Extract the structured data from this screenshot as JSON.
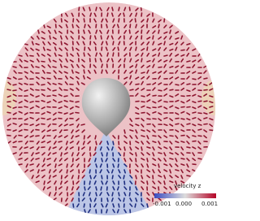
{
  "colorbar": {
    "title": "velocity z",
    "labels": [
      "-0.001",
      "0.000",
      "0.001"
    ]
  }
}
